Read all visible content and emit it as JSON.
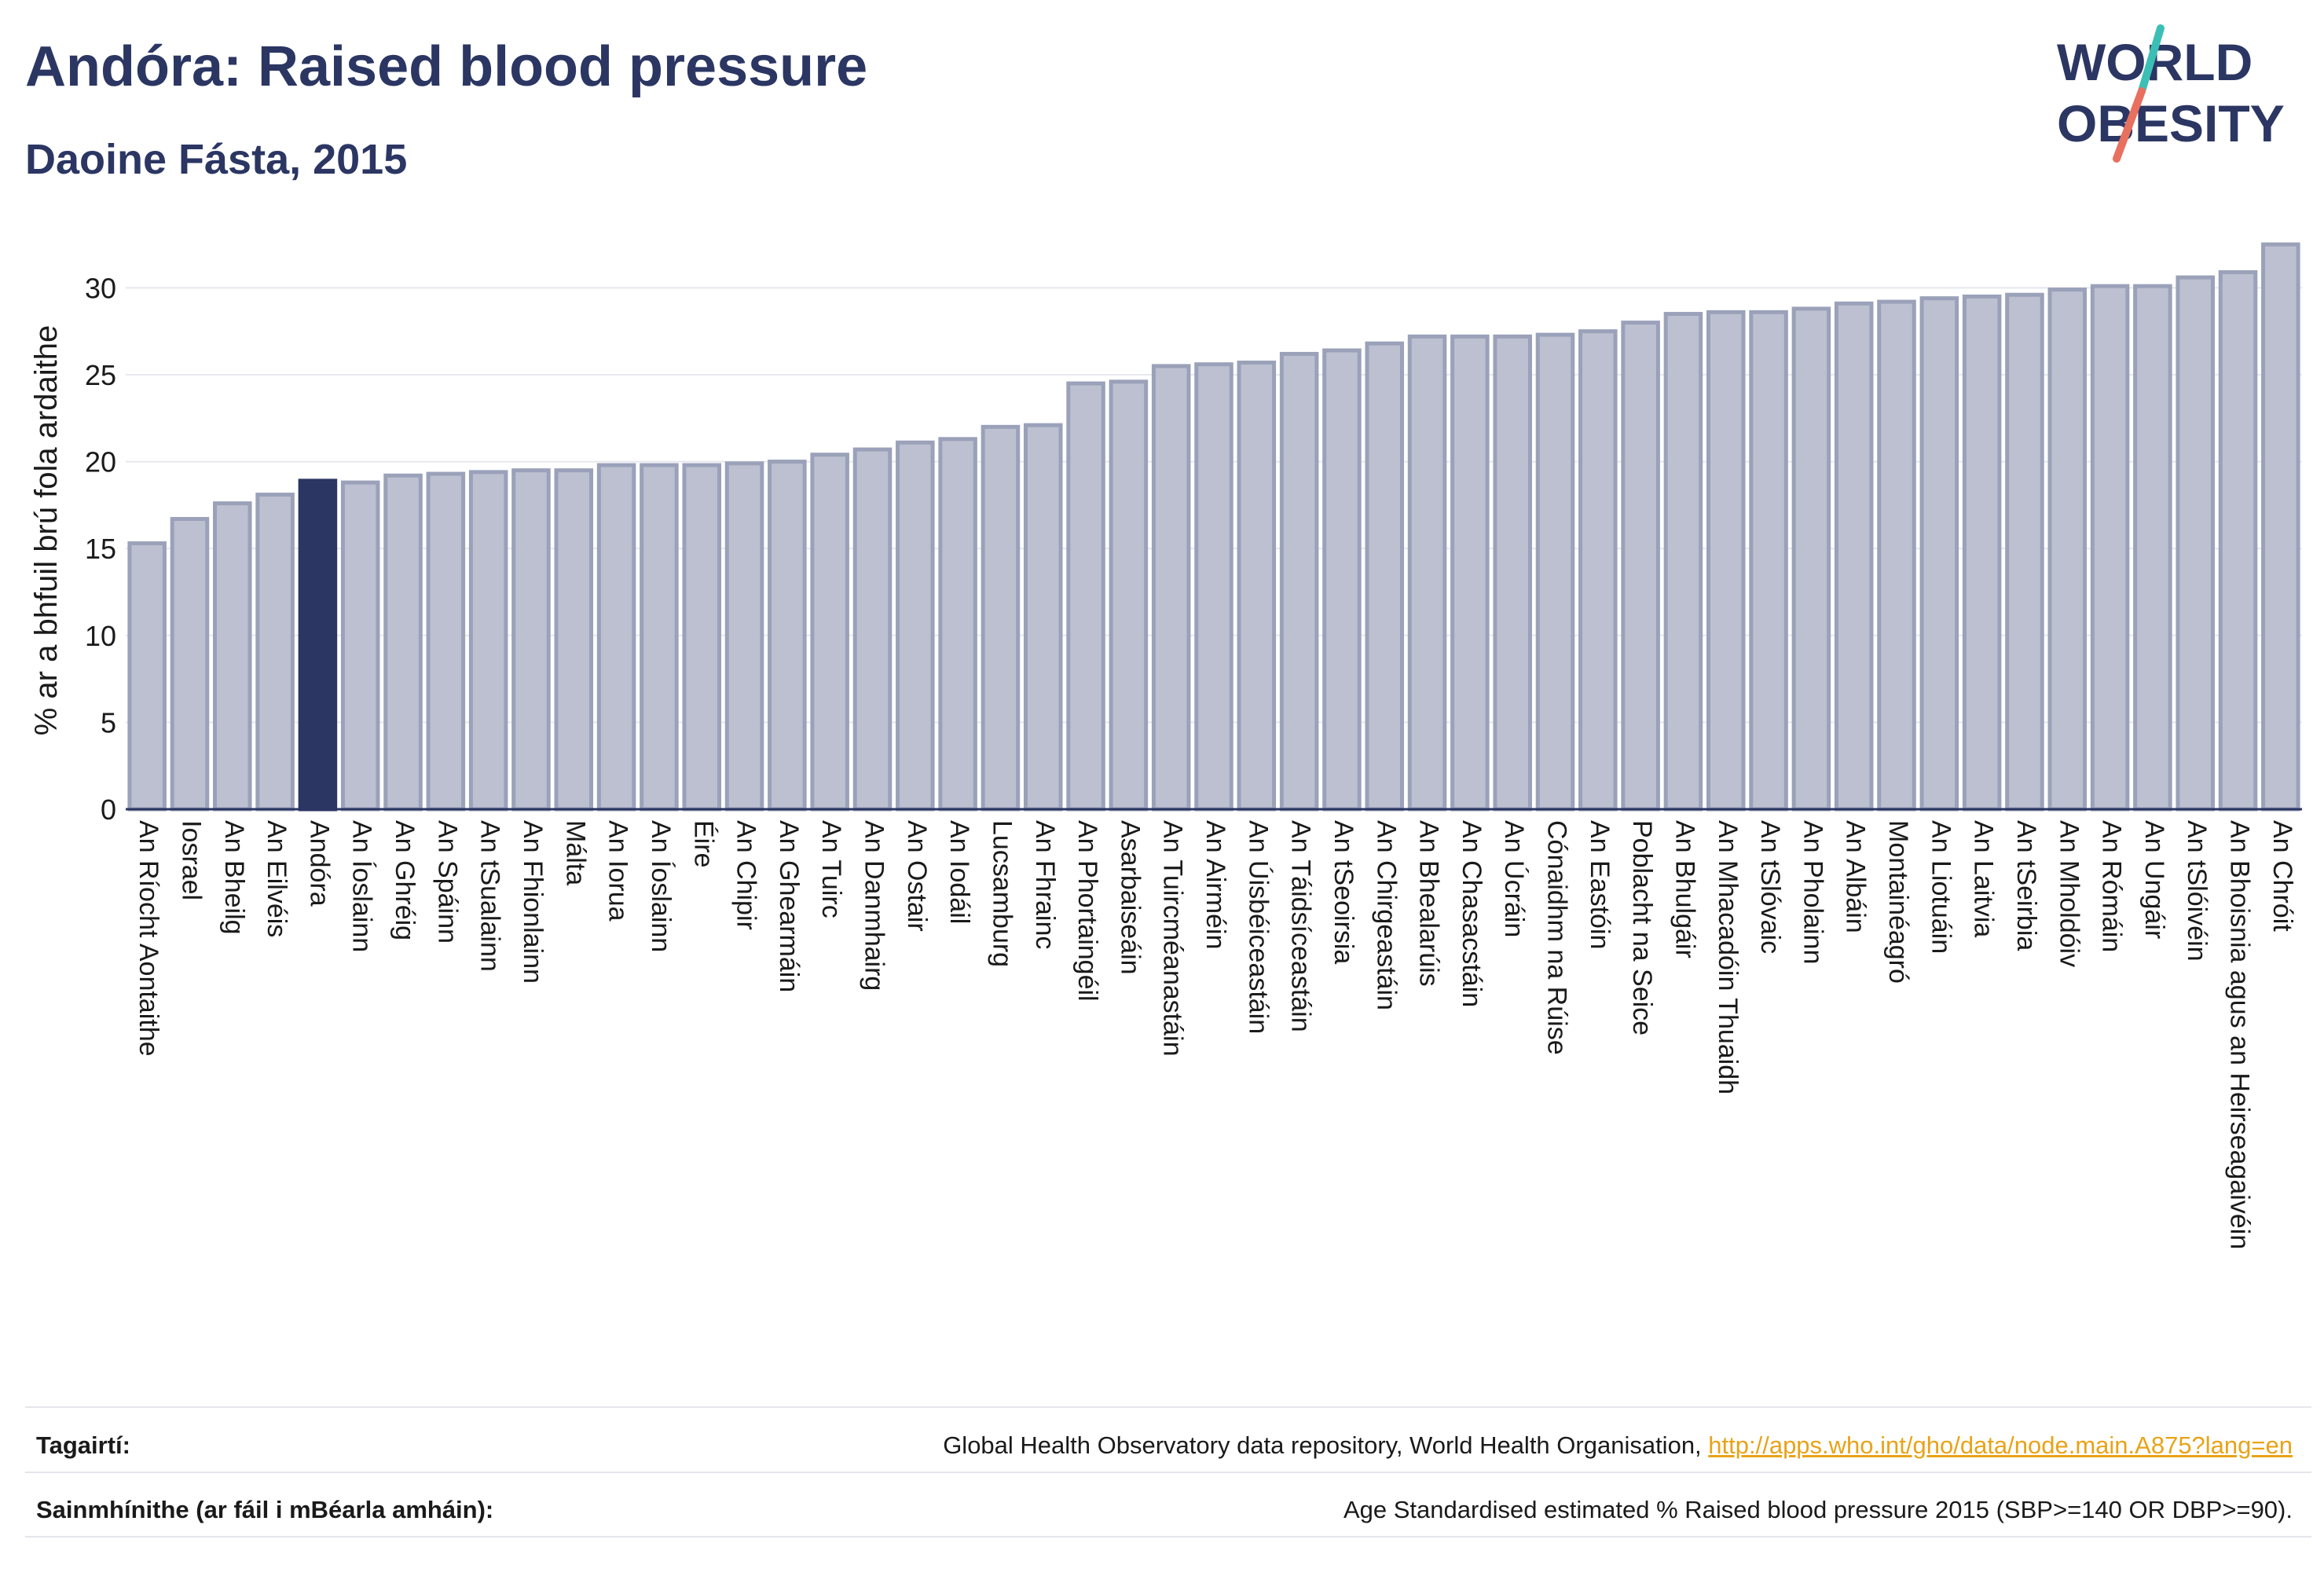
{
  "header": {
    "title": "Andóra: Raised blood pressure",
    "subtitle": "Daoine Fásta, 2015"
  },
  "logo": {
    "line1": "WORLD",
    "line2": "OBESITY",
    "text_color": "#2b3663",
    "slash_teal": "#3bbfb5",
    "slash_red": "#e8705f"
  },
  "colors": {
    "bar_fill": "#bcc0d0",
    "bar_stroke": "#9aa1b9",
    "highlight_fill": "#2b3663",
    "grid": "#e6e8ee",
    "axis": "#2b3663"
  },
  "chart_data": {
    "type": "bar",
    "ylabel": "% ar a bhfuil brú fola ardaithe",
    "ylim": [
      0,
      33
    ],
    "yticks": [
      0,
      5,
      10,
      15,
      20,
      25,
      30
    ],
    "grid": true,
    "highlight": "Andóra",
    "categories": [
      "An Ríocht Aontaithe",
      "Iosrael",
      "An Bheilg",
      "An Eilvéis",
      "Andóra",
      "An Íoslainn",
      "An Ghréig",
      "An Spáinn",
      "An tSualainn",
      "An Fhionlainn",
      "Málta",
      "An Iorua",
      "An Íoslainn",
      "Éire",
      "An Chipir",
      "An Ghearmáin",
      "An Tuirc",
      "An Danmhairg",
      "An Ostair",
      "An Iodáil",
      "Lucsamburg",
      "An Fhrainc",
      "An Phortaingéil",
      "Asarbaiseáin",
      "An Tuircméanastáin",
      "An Airméin",
      "An Úisbéiceastáin",
      "An Táidsíceastáin",
      "An tSeoirsia",
      "An Chirgeastáin",
      "An Bhealarúis",
      "An Chasacstáin",
      "An Úcráin",
      "Cónaidhm na Rúise",
      "An Eastóin",
      "Poblacht na Seice",
      "An Bhulgáir",
      "An Mhacadóin Thuaidh",
      "An tSlóvaic",
      "An Pholainn",
      "An Albáin",
      "Montainéagró",
      "An Liotuáin",
      "An Laitvia",
      "An tSeirbia",
      "An Mholdóiv",
      "An Rómáin",
      "An Ungáir",
      "An tSlóivéin",
      "An Bhoisnia agus an Heirseagaivéin",
      "An Chróit"
    ],
    "values": [
      15.3,
      16.7,
      17.6,
      18.1,
      18.9,
      18.8,
      19.2,
      19.3,
      19.4,
      19.5,
      19.5,
      19.8,
      19.8,
      19.8,
      19.9,
      20.0,
      20.4,
      20.7,
      21.1,
      21.3,
      22.0,
      22.1,
      24.5,
      24.6,
      25.5,
      25.6,
      25.7,
      26.2,
      26.4,
      26.8,
      27.2,
      27.2,
      27.2,
      27.3,
      27.5,
      28.0,
      28.5,
      28.6,
      28.6,
      28.8,
      29.1,
      29.2,
      29.4,
      29.5,
      29.6,
      29.9,
      30.1,
      30.1,
      30.6,
      30.9,
      32.5
    ]
  },
  "footer": {
    "references_label": "Tagairtí:",
    "references_text": "Global Health Observatory data repository, World Health Organisation, ",
    "references_link": "http://apps.who.int/gho/data/node.main.A875?lang=en",
    "definitions_label": "Sainmhínithe (ar fáil i mBéarla amháin):",
    "definitions_text": "Age Standardised estimated % Raised blood pressure 2015 (SBP>=140 OR DBP>=90)."
  }
}
